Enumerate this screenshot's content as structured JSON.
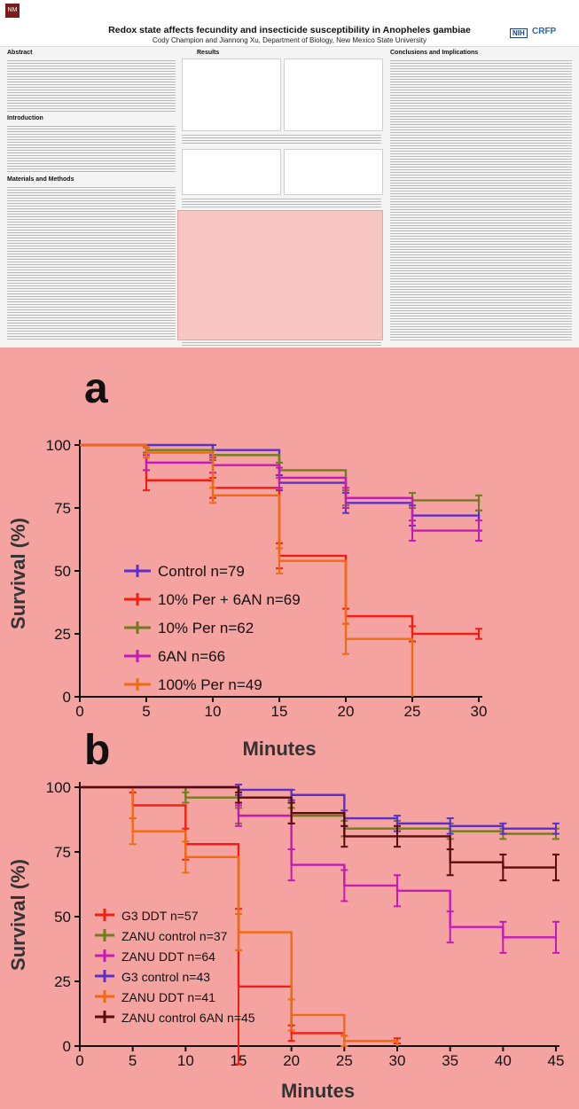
{
  "poster": {
    "logo": "NM",
    "title": "Redox state affects fecundity and insecticide susceptibility in Anopheles gambiae",
    "authors": "Cody Champion and Jiannong Xu, Department of Biology, New Mexico State University",
    "nih": "NIH",
    "crfp": "CRFP",
    "sections": {
      "abstract": "Abstract",
      "introduction": "Introduction",
      "methods": "Materials and Methods",
      "results": "Results",
      "conclusions": "Conclusions and Implications"
    }
  },
  "colors": {
    "plot_bg": "#f4a3a0",
    "control": "#5b2fc9",
    "red": "#f21d10",
    "olive": "#6f7d1a",
    "magenta": "#c51ab8",
    "orange": "#f06a0e",
    "darkred": "#5a0c0c"
  },
  "chart_data": [
    {
      "panel": "a",
      "type": "line",
      "step": true,
      "xlabel": "Minutes",
      "ylabel": "Survival (%)",
      "xlim": [
        0,
        30
      ],
      "ylim": [
        0,
        100
      ],
      "xticks": [
        0,
        5,
        10,
        15,
        20,
        25,
        30
      ],
      "yticks": [
        0,
        25,
        50,
        75,
        100
      ],
      "legend_position": "lower-left",
      "series": [
        {
          "name": "Control  n=79",
          "color": "control",
          "x": [
            0,
            5,
            10,
            15,
            20,
            25,
            30
          ],
          "y": [
            100,
            100,
            98,
            85,
            77,
            72,
            70
          ],
          "err": [
            0,
            0,
            2,
            3,
            4,
            4,
            4
          ]
        },
        {
          "name": "10% Per + 6AN n=69",
          "color": "red",
          "x": [
            0,
            5,
            10,
            15,
            20,
            25,
            30
          ],
          "y": [
            100,
            86,
            83,
            56,
            32,
            25,
            25
          ],
          "err": [
            0,
            4,
            4,
            5,
            3,
            3,
            2
          ]
        },
        {
          "name": "10% Per n=62",
          "color": "olive",
          "x": [
            0,
            5,
            10,
            15,
            20,
            25,
            30
          ],
          "y": [
            100,
            98,
            96,
            90,
            79,
            78,
            77
          ],
          "err": [
            0,
            1,
            2,
            3,
            3,
            3,
            3
          ]
        },
        {
          "name": "6AN n=66",
          "color": "magenta",
          "x": [
            0,
            5,
            10,
            15,
            20,
            25,
            30
          ],
          "y": [
            100,
            93,
            92,
            87,
            79,
            66,
            66
          ],
          "err": [
            0,
            3,
            3,
            4,
            4,
            4,
            4
          ]
        },
        {
          "name": "100% Per n=49",
          "color": "orange",
          "x": [
            0,
            5,
            10,
            15,
            20,
            25
          ],
          "y": [
            100,
            97,
            80,
            54,
            23,
            0
          ],
          "err": [
            0,
            2,
            3,
            5,
            6,
            0
          ]
        }
      ]
    },
    {
      "panel": "b",
      "type": "line",
      "step": true,
      "xlabel": "Minutes",
      "ylabel": "Survival (%)",
      "xlim": [
        0,
        45
      ],
      "ylim": [
        0,
        100
      ],
      "xticks": [
        0,
        5,
        10,
        15,
        20,
        25,
        30,
        35,
        40,
        45
      ],
      "yticks": [
        0,
        25,
        50,
        75,
        100
      ],
      "legend_position": "lower-left",
      "series": [
        {
          "name": "G3 DDT n=57",
          "color": "red",
          "x": [
            0,
            5,
            10,
            15,
            20,
            25,
            30
          ],
          "y": [
            100,
            93,
            78,
            23,
            5,
            2,
            2
          ],
          "err": [
            0,
            5,
            6,
            30,
            3,
            2,
            1
          ]
        },
        {
          "name": "ZANU control n=37",
          "color": "olive",
          "x": [
            0,
            5,
            10,
            15,
            20,
            25,
            30,
            35,
            40,
            45
          ],
          "y": [
            100,
            100,
            96,
            89,
            89,
            84,
            84,
            83,
            82,
            82
          ],
          "err": [
            0,
            0,
            2,
            3,
            3,
            3,
            3,
            3,
            2,
            2
          ]
        },
        {
          "name": "ZANU DDT n=64",
          "color": "magenta",
          "x": [
            0,
            5,
            10,
            15,
            20,
            25,
            30,
            35,
            40,
            45
          ],
          "y": [
            100,
            100,
            100,
            89,
            70,
            62,
            60,
            46,
            42,
            42
          ],
          "err": [
            0,
            0,
            0,
            4,
            6,
            6,
            6,
            6,
            6,
            6
          ]
        },
        {
          "name": "G3 control n=43",
          "color": "control",
          "x": [
            0,
            5,
            10,
            15,
            20,
            25,
            30,
            35,
            40,
            45
          ],
          "y": [
            100,
            100,
            100,
            99,
            97,
            88,
            86,
            85,
            84,
            84
          ],
          "err": [
            0,
            0,
            0,
            2,
            2,
            3,
            3,
            3,
            2,
            2
          ]
        },
        {
          "name": "ZANU DDT n=41",
          "color": "orange",
          "x": [
            0,
            5,
            10,
            15,
            20,
            25,
            30
          ],
          "y": [
            100,
            83,
            73,
            44,
            12,
            2,
            0
          ],
          "err": [
            0,
            5,
            6,
            7,
            6,
            2,
            0
          ]
        },
        {
          "name": "ZANU control 6AN n=45",
          "color": "darkred",
          "x": [
            0,
            5,
            10,
            15,
            20,
            25,
            30,
            35,
            40,
            45
          ],
          "y": [
            100,
            100,
            100,
            96,
            90,
            81,
            81,
            71,
            69,
            69
          ],
          "err": [
            0,
            0,
            0,
            2,
            4,
            4,
            4,
            5,
            5,
            5
          ]
        }
      ]
    }
  ]
}
